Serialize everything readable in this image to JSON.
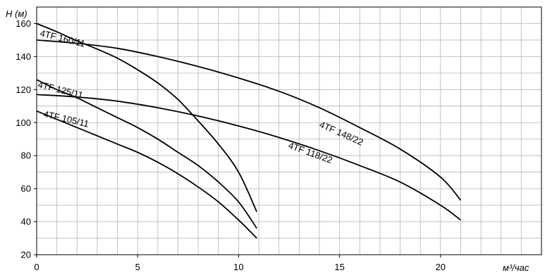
{
  "chart_data": {
    "type": "line",
    "title": "",
    "ylabel": "H (м)",
    "xlabel": "м³/час",
    "xlim": [
      0,
      25
    ],
    "ylim": [
      20,
      170
    ],
    "grid": true,
    "x_ticks": [
      0,
      5,
      10,
      15,
      20
    ],
    "y_ticks": [
      20,
      40,
      60,
      80,
      100,
      120,
      140,
      160
    ],
    "series": [
      {
        "name": "4TF 160/11",
        "x": [
          0,
          1,
          2,
          3,
          4,
          5,
          6,
          7,
          8,
          9,
          10,
          10.9
        ],
        "y": [
          160,
          155,
          149.5,
          144.5,
          139,
          132,
          124,
          114,
          101,
          87,
          70,
          46
        ]
      },
      {
        "name": "4TF 148/22",
        "x": [
          0,
          2,
          4,
          6,
          8,
          10,
          12,
          14,
          16,
          18,
          20,
          21
        ],
        "y": [
          150,
          148,
          145,
          140,
          134,
          127,
          119,
          109,
          97,
          84,
          67,
          53
        ]
      },
      {
        "name": "4TF 125/11",
        "x": [
          0,
          1,
          2,
          3,
          4,
          5,
          6,
          7,
          8,
          9,
          10,
          10.9
        ],
        "y": [
          126,
          120,
          115,
          109,
          103,
          97,
          90,
          82,
          74,
          64,
          52,
          36
        ]
      },
      {
        "name": "4TF 118/22",
        "x": [
          0,
          2,
          4,
          6,
          8,
          10,
          12,
          14,
          16,
          18,
          20,
          21
        ],
        "y": [
          117,
          115.5,
          113,
          109,
          104,
          98,
          91,
          83,
          74,
          64,
          50,
          41
        ]
      },
      {
        "name": "4TF 105/11",
        "x": [
          0,
          1,
          2,
          3,
          4,
          5,
          6,
          7,
          8,
          9,
          10,
          10.9
        ],
        "y": [
          107,
          102,
          97,
          92,
          87,
          82,
          76,
          69,
          61,
          52,
          41,
          30
        ]
      }
    ]
  }
}
